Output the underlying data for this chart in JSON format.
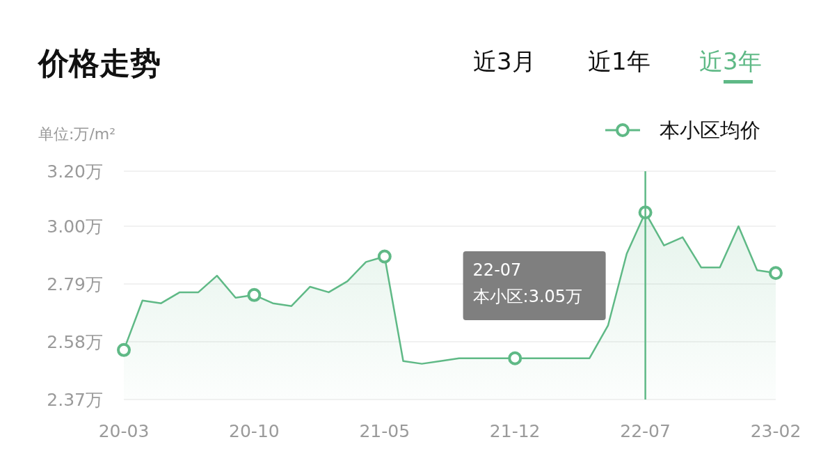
{
  "chart_data": {
    "type": "area",
    "title": "价格走势",
    "ylabel": "单位:万/m²",
    "annotations": [
      "近3月",
      "近1年",
      "近3年",
      "22-07",
      "本小区:3.05万"
    ],
    "categories": [
      "20-03",
      null,
      null,
      null,
      null,
      null,
      null,
      "20-10",
      null,
      null,
      null,
      null,
      null,
      null,
      "21-05",
      null,
      null,
      null,
      null,
      null,
      null,
      "21-12",
      null,
      null,
      null,
      null,
      null,
      null,
      "22-07",
      null,
      null,
      null,
      null,
      null,
      null,
      "23-02"
    ],
    "series": [
      {
        "name": "本小区均价",
        "color": "#5fb986",
        "values": [
          2.55,
          2.73,
          2.72,
          2.76,
          2.76,
          2.82,
          2.74,
          2.75,
          2.72,
          2.71,
          2.78,
          2.76,
          2.8,
          2.87,
          2.89,
          2.51,
          2.5,
          2.51,
          2.52,
          2.52,
          2.52,
          2.52,
          2.52,
          2.52,
          2.52,
          2.52,
          2.64,
          2.9,
          3.05,
          2.93,
          2.96,
          2.85,
          2.85,
          3.0,
          2.84,
          2.83
        ]
      },
      {
        "type": "scatter",
        "color": "#5fb986",
        "values": [
          2.55,
          null,
          null,
          null,
          null,
          null,
          null,
          2.75,
          null,
          null,
          null,
          null,
          null,
          null,
          2.89,
          null,
          null,
          null,
          null,
          null,
          null,
          2.52,
          null,
          null,
          null,
          null,
          null,
          null,
          3.05,
          null,
          null,
          null,
          null,
          null,
          null,
          2.83
        ]
      }
    ],
    "ylim": [
      2.37,
      3.2
    ],
    "yticks": [
      {
        "value": 2.37,
        "label": "2.37万"
      },
      {
        "value": 2.58,
        "label": "2.58万"
      },
      {
        "value": 2.79,
        "label": "2.79万"
      },
      {
        "value": 3.0,
        "label": "3.00万"
      },
      {
        "value": 3.2,
        "label": "3.20万"
      }
    ],
    "ref_lines": [
      {
        "axis": "x",
        "value": "22-07",
        "label": null,
        "color": "#5fb986"
      }
    ],
    "grid": "y",
    "legend": "top right"
  }
}
